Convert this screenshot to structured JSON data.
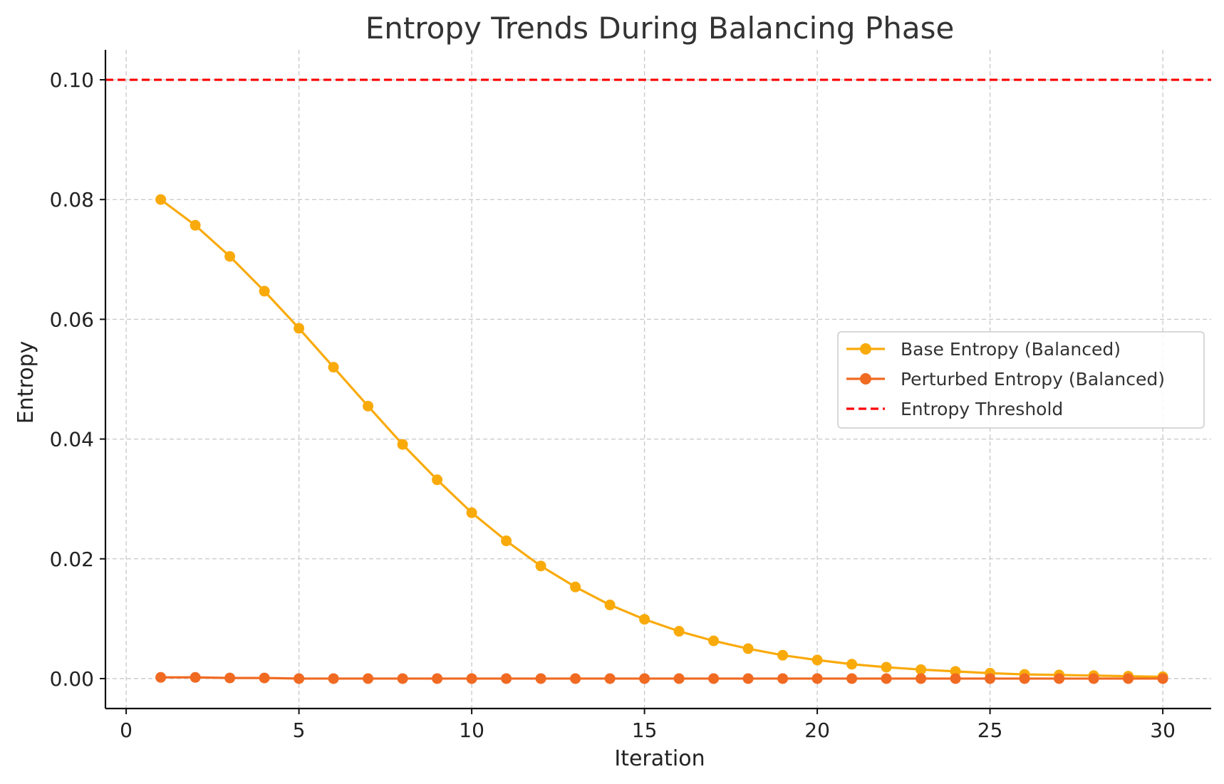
{
  "chart_data": {
    "type": "line",
    "title": "Entropy Trends During Balancing Phase",
    "xlabel": "Iteration",
    "ylabel": "Entropy",
    "xlim": [
      -0.6,
      31.4
    ],
    "ylim": [
      -0.005,
      0.105
    ],
    "xticks": [
      0,
      5,
      10,
      15,
      20,
      25,
      30
    ],
    "xtick_labels": [
      "0",
      "5",
      "10",
      "15",
      "20",
      "25",
      "30"
    ],
    "yticks": [
      0.0,
      0.02,
      0.04,
      0.06,
      0.08,
      0.1
    ],
    "ytick_labels": [
      "0.00",
      "0.02",
      "0.04",
      "0.06",
      "0.08",
      "0.10"
    ],
    "grid": true,
    "legend_position": "center-right",
    "x": [
      1,
      2,
      3,
      4,
      5,
      6,
      7,
      8,
      9,
      10,
      11,
      12,
      13,
      14,
      15,
      16,
      17,
      18,
      19,
      20,
      21,
      22,
      23,
      24,
      25,
      26,
      27,
      28,
      29,
      30
    ],
    "series": [
      {
        "name": "Base Entropy (Balanced)",
        "color": "#F9AA0B",
        "marker": "circle",
        "values": [
          0.08,
          0.0757,
          0.0705,
          0.0647,
          0.0585,
          0.052,
          0.0455,
          0.0391,
          0.0332,
          0.0277,
          0.023,
          0.0188,
          0.0153,
          0.0123,
          0.0099,
          0.0079,
          0.0063,
          0.005,
          0.0039,
          0.0031,
          0.0024,
          0.0019,
          0.0015,
          0.0012,
          0.0009,
          0.0007,
          0.0006,
          0.0005,
          0.0004,
          0.0003
        ]
      },
      {
        "name": "Perturbed Entropy (Balanced)",
        "color": "#F06A22",
        "marker": "circle",
        "values": [
          0.0002,
          0.0002,
          0.0001,
          0.0001,
          0.0,
          0.0,
          0.0,
          0.0,
          0.0,
          0.0,
          0.0,
          0.0,
          0.0,
          0.0,
          0.0,
          0.0,
          0.0,
          0.0,
          0.0,
          0.0,
          0.0,
          0.0,
          0.0,
          0.0,
          0.0,
          0.0,
          0.0,
          0.0,
          0.0,
          0.0
        ]
      }
    ],
    "threshold": {
      "name": "Entropy Threshold",
      "value": 0.1,
      "color": "#FF0000",
      "style": "dashed"
    }
  }
}
